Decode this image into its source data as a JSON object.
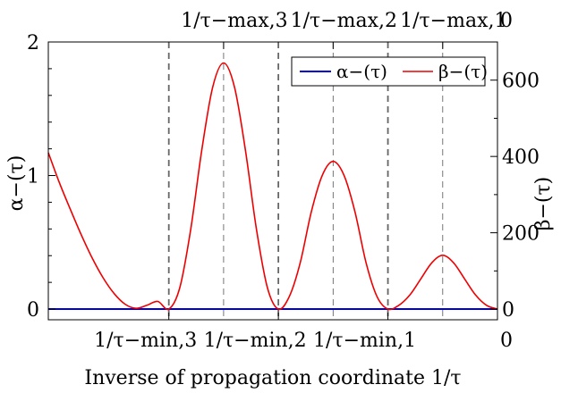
{
  "chart_data": {
    "type": "line",
    "xlabel": "Inverse of propagation coordinate 1/τ",
    "ylabel_left": "α−(τ)",
    "ylabel_right": "β−(τ)",
    "left_axis": {
      "ylim": [
        -0.08,
        2.0
      ],
      "ticks": [
        0,
        1,
        2
      ],
      "tick_labels": [
        "0",
        "1",
        "2"
      ]
    },
    "right_axis": {
      "ylim": [
        -28,
        700
      ],
      "ticks": [
        0,
        200,
        400,
        600
      ],
      "tick_labels": [
        "0",
        "200",
        "400",
        "600"
      ]
    },
    "xlim": [
      -0.05,
      2.0
    ],
    "bottom_ticks": [
      {
        "x": 0.5,
        "label": "1/τ−min,3"
      },
      {
        "x": 1.0,
        "label": "1/τ−min,2"
      },
      {
        "x": 1.5,
        "label": "1/τ−min,1"
      },
      {
        "x": 2.0,
        "label": "0"
      }
    ],
    "top_ticks": [
      {
        "x": 0.75,
        "label": "1/τ−max,3"
      },
      {
        "x": 1.25,
        "label": "1/τ−max,2"
      },
      {
        "x": 1.75,
        "label": "1/τ−max,1"
      },
      {
        "x": 2.0,
        "label": "0"
      }
    ],
    "vlines_min": [
      0.5,
      1.0,
      1.5
    ],
    "vlines_max": [
      0.75,
      1.25,
      1.75
    ],
    "legend": {
      "placement": "top-right"
    },
    "series": [
      {
        "name": "α−(τ)",
        "axis": "left",
        "color": "#0000dd",
        "x": [
          -0.05,
          2.0
        ],
        "y": [
          0,
          0
        ]
      },
      {
        "name": "β−(τ)",
        "axis": "right",
        "color": "#ee0000",
        "x": [
          -0.05,
          0.0,
          0.05,
          0.1,
          0.15,
          0.2,
          0.25,
          0.3,
          0.35,
          0.4,
          0.45,
          0.5,
          0.55,
          0.6,
          0.65,
          0.7,
          0.75,
          0.8,
          0.85,
          0.9,
          0.95,
          1.0,
          1.05,
          1.1,
          1.15,
          1.2,
          1.25,
          1.3,
          1.35,
          1.4,
          1.45,
          1.5,
          1.55,
          1.6,
          1.65,
          1.7,
          1.75,
          1.8,
          1.85,
          1.9,
          1.95,
          2.0
        ],
        "y": [
          410,
          332,
          262,
          195,
          134,
          82,
          41,
          13,
          2,
          10,
          20,
          0,
          56,
          209,
          415,
          581,
          645,
          581,
          415,
          209,
          56,
          0,
          33,
          122,
          254,
          350,
          387,
          350,
          254,
          122,
          33,
          0,
          10,
          37,
          79,
          121,
          141,
          121,
          79,
          37,
          10,
          0
        ]
      }
    ]
  }
}
